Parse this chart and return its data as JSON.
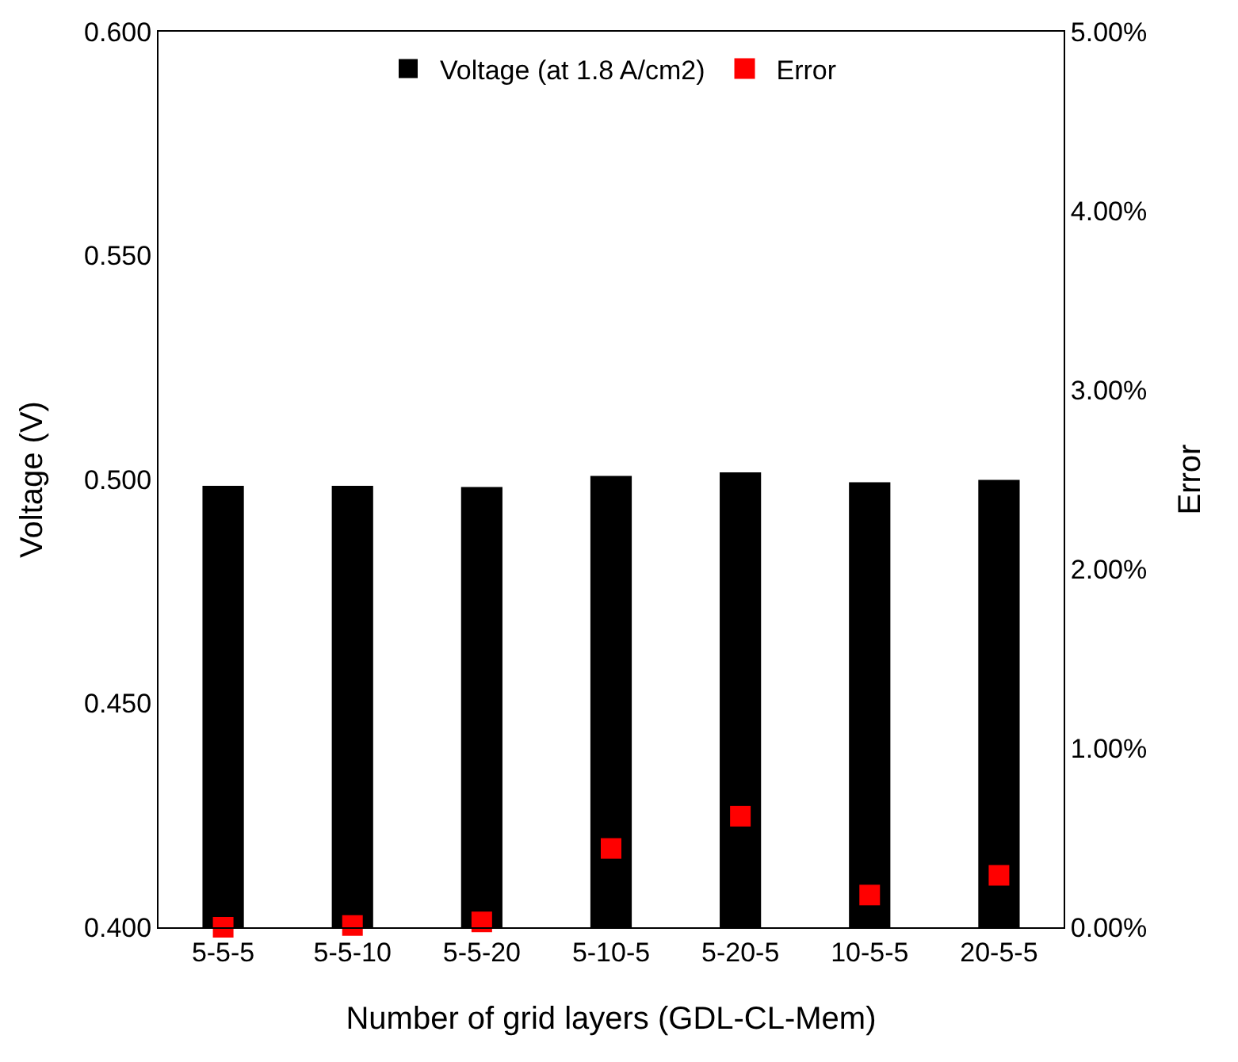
{
  "chart_data": {
    "type": "bar",
    "xlabel": "Number of grid layers (GDL-CL-Mem)",
    "ylabel": "Voltage (V)",
    "y2label": "Error",
    "categories": [
      "5-5-5",
      "5-5-10",
      "5-5-20",
      "5-10-5",
      "5-20-5",
      "10-5-5",
      "20-5-5"
    ],
    "series": [
      {
        "name": "Voltage (at 1.8 A/cm2)",
        "color": "#000000",
        "values": [
          0.4986,
          0.4986,
          0.4983,
          0.5008,
          0.5016,
          0.4994,
          0.4999
        ]
      },
      {
        "name": "Error",
        "type": "scatter",
        "axis": "y2",
        "marker": "square",
        "color": "#ff0000",
        "values": [
          0.0,
          0.0001,
          0.0003,
          0.0044,
          0.0062,
          0.0018,
          0.0029
        ]
      }
    ],
    "ylim": [
      0.4,
      0.6
    ],
    "yticks": [
      {
        "value": 0.4,
        "label": "0.400"
      },
      {
        "value": 0.45,
        "label": "0.450"
      },
      {
        "value": 0.5,
        "label": "0.500"
      },
      {
        "value": 0.55,
        "label": "0.550"
      },
      {
        "value": 0.6,
        "label": "0.600"
      }
    ],
    "y2lim": [
      0,
      0.05
    ],
    "y2ticks": [
      {
        "value": 0,
        "label": "0.00%"
      },
      {
        "value": 0.01,
        "label": "1.00%"
      },
      {
        "value": 0.02,
        "label": "2.00%"
      },
      {
        "value": 0.03,
        "label": "3.00%"
      },
      {
        "value": 0.04,
        "label": "4.00%"
      },
      {
        "value": 0.05,
        "label": "5.00%"
      }
    ],
    "legend": "top"
  }
}
